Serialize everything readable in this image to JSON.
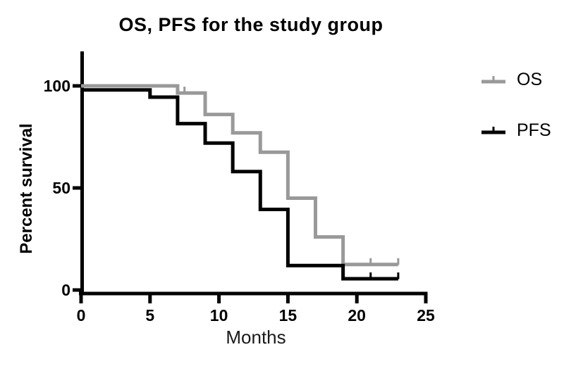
{
  "chart_data": {
    "type": "line",
    "subtype": "kaplan-meier-step",
    "title": "OS, PFS for the study group",
    "xlabel": "Months",
    "ylabel": "Percent survival",
    "xlim": [
      0,
      25
    ],
    "ylim": [
      0,
      100
    ],
    "xticks": [
      0,
      5,
      10,
      15,
      20,
      25
    ],
    "yticks": [
      0,
      50,
      100
    ],
    "grid": "off",
    "legend_position": "right",
    "axis_color": "#000000",
    "series": [
      {
        "name": "OS",
        "color": "#999999",
        "steps": [
          [
            0,
            100
          ],
          [
            7,
            96.5
          ],
          [
            9,
            86
          ],
          [
            11,
            77
          ],
          [
            13,
            67.5
          ],
          [
            15,
            45
          ],
          [
            17,
            26
          ],
          [
            19,
            12.5
          ],
          [
            23,
            12.5
          ]
        ],
        "censor_marks": [
          [
            7.5,
            96.5
          ],
          [
            21,
            12.5
          ],
          [
            23,
            12.5
          ]
        ]
      },
      {
        "name": "PFS",
        "color": "#000000",
        "steps": [
          [
            0,
            98
          ],
          [
            5,
            94.5
          ],
          [
            7,
            81.5
          ],
          [
            9,
            72
          ],
          [
            11,
            58
          ],
          [
            13,
            39.5
          ],
          [
            15,
            12
          ],
          [
            19,
            5.5
          ],
          [
            23,
            5.5
          ]
        ],
        "censor_marks": [
          [
            21,
            5.5
          ],
          [
            23,
            5.5
          ]
        ]
      }
    ]
  }
}
